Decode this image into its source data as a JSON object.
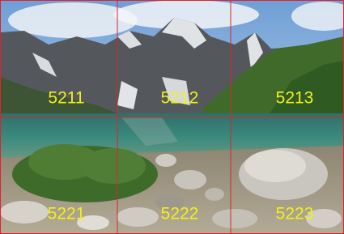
{
  "grid": {
    "rows": [
      [
        "5211",
        "5212",
        "5213"
      ],
      [
        "5221",
        "5222",
        "5223"
      ]
    ]
  }
}
